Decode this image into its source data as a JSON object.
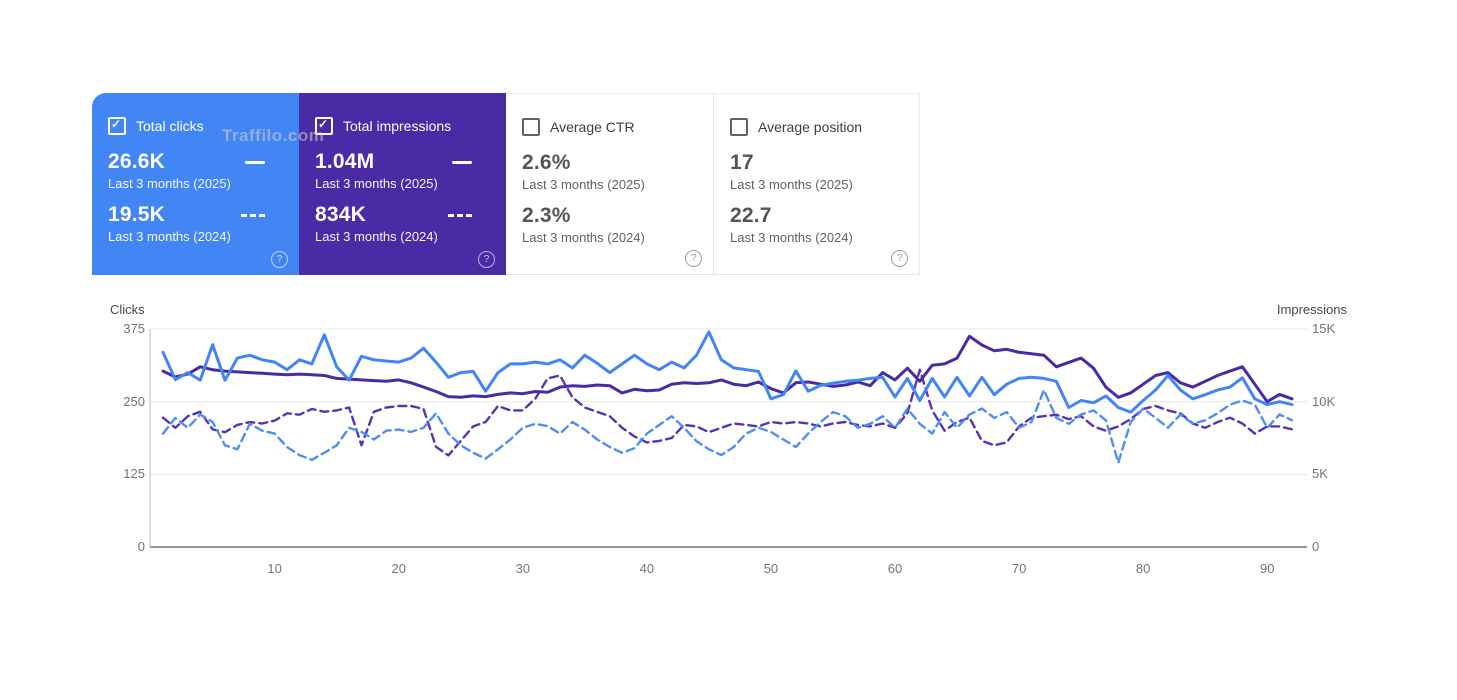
{
  "watermark": "Traffilo.com",
  "cards": [
    {
      "label": "Total clicks",
      "checked": true,
      "bg": "#4285f4",
      "value_2025": "26.6K",
      "period_2025": "Last 3 months (2025)",
      "value_2024": "19.5K",
      "period_2024": "Last 3 months (2024)",
      "help": "?"
    },
    {
      "label": "Total impressions",
      "checked": true,
      "bg": "#4b2aa5",
      "value_2025": "1.04M",
      "period_2025": "Last 3 months (2025)",
      "value_2024": "834K",
      "period_2024": "Last 3 months (2024)",
      "help": "?"
    },
    {
      "label": "Average CTR",
      "checked": false,
      "bg": "#ffffff",
      "value_2025": "2.6%",
      "period_2025": "Last 3 months (2025)",
      "value_2024": "2.3%",
      "period_2024": "Last 3 months (2024)",
      "help": "?"
    },
    {
      "label": "Average position",
      "checked": false,
      "bg": "#ffffff",
      "value_2025": "17",
      "period_2025": "Last 3 months (2025)",
      "value_2024": "22.7",
      "period_2024": "Last 3 months (2024)",
      "help": "?"
    }
  ],
  "chart_data": {
    "type": "line",
    "title": "",
    "grid": true,
    "legend_position": "none",
    "x_axis": {
      "range": [
        1,
        92
      ],
      "tick_values": [
        10,
        20,
        30,
        40,
        50,
        60,
        70,
        80,
        90
      ]
    },
    "y_left": {
      "label": "Clicks",
      "max": 375,
      "ticks": [
        375,
        250,
        125,
        0
      ]
    },
    "y_right": {
      "label": "Impressions",
      "max": 15000,
      "tick_values": [
        15000,
        10000,
        5000,
        0
      ],
      "tick_labels": [
        "15K",
        "10K",
        "5K",
        "0"
      ]
    },
    "series": [
      {
        "name": "Impressions — Last 3 months (2024)",
        "axis": "right",
        "style": "dashed",
        "color": "#5833b8",
        "values": [
          8900,
          8200,
          9000,
          9300,
          8100,
          7900,
          8400,
          8600,
          8500,
          8700,
          9200,
          9100,
          9500,
          9300,
          9400,
          9600,
          7000,
          9300,
          9600,
          9700,
          9700,
          9500,
          6900,
          6300,
          7300,
          8300,
          8600,
          9700,
          9400,
          9400,
          10200,
          11600,
          11800,
          10300,
          9600,
          9300,
          9000,
          8200,
          7600,
          7200,
          7300,
          7500,
          8400,
          8300,
          7900,
          8200,
          8500,
          8400,
          8300,
          8600,
          8500,
          8600,
          8500,
          8300,
          8500,
          8600,
          8400,
          8300,
          8500,
          8200,
          9200,
          12200,
          9400,
          8000,
          8600,
          8900,
          7300,
          7000,
          7200,
          8300,
          8900,
          9000,
          9100,
          8800,
          9000,
          8300,
          8000,
          8300,
          8800,
          9500,
          9700,
          9400,
          9200,
          8500,
          8200,
          8600,
          8900,
          8500,
          7800,
          8300,
          8300,
          8100
        ]
      },
      {
        "name": "Clicks — Last 3 months (2024)",
        "axis": "left",
        "style": "dashed",
        "color": "#4f8ef5",
        "values": [
          195,
          222,
          205,
          228,
          215,
          175,
          168,
          212,
          200,
          195,
          172,
          158,
          150,
          162,
          175,
          205,
          198,
          185,
          200,
          202,
          198,
          205,
          230,
          195,
          175,
          162,
          152,
          168,
          185,
          205,
          212,
          208,
          195,
          215,
          202,
          185,
          172,
          162,
          170,
          195,
          210,
          225,
          205,
          182,
          168,
          158,
          172,
          195,
          205,
          198,
          185,
          172,
          195,
          215,
          232,
          225,
          205,
          212,
          225,
          205,
          238,
          212,
          195,
          232,
          205,
          228,
          238,
          222,
          232,
          205,
          215,
          270,
          222,
          212,
          228,
          235,
          218,
          145,
          215,
          238,
          222,
          205,
          228,
          212,
          218,
          230,
          245,
          252,
          245,
          205,
          228,
          218
        ]
      },
      {
        "name": "Impressions — Last 3 months (2025)",
        "axis": "right",
        "style": "solid",
        "color": "#4b2aa5",
        "values": [
          12100,
          11700,
          11900,
          12400,
          12200,
          12100,
          12050,
          12000,
          11950,
          11900,
          11850,
          11900,
          11850,
          11800,
          11600,
          11550,
          11500,
          11450,
          11400,
          11500,
          11300,
          11000,
          10700,
          10350,
          10300,
          10400,
          10350,
          10500,
          10600,
          10550,
          10700,
          10650,
          11000,
          11100,
          11050,
          11150,
          11100,
          10600,
          10850,
          10750,
          10800,
          11200,
          11300,
          11250,
          11300,
          11500,
          11200,
          11100,
          11350,
          10900,
          10600,
          11300,
          11350,
          11200,
          11050,
          11150,
          11350,
          11100,
          12000,
          11500,
          12300,
          11400,
          12500,
          12600,
          13000,
          14500,
          13900,
          13500,
          13600,
          13400,
          13300,
          13200,
          12400,
          12700,
          13000,
          12300,
          11000,
          10300,
          10600,
          11200,
          11800,
          12000,
          11300,
          11000,
          11400,
          11800,
          12100,
          12400,
          11200,
          10000,
          10500,
          10200
        ]
      },
      {
        "name": "Clicks — Last 3 months (2025)",
        "axis": "left",
        "style": "solid",
        "color": "#4285f4",
        "values": [
          335,
          288,
          300,
          287,
          348,
          287,
          325,
          330,
          322,
          318,
          305,
          322,
          315,
          365,
          310,
          287,
          328,
          322,
          320,
          318,
          325,
          342,
          318,
          292,
          300,
          302,
          268,
          300,
          315,
          315,
          318,
          315,
          322,
          308,
          330,
          316,
          300,
          315,
          330,
          315,
          305,
          318,
          308,
          330,
          370,
          322,
          308,
          305,
          302,
          255,
          262,
          303,
          268,
          278,
          282,
          285,
          287,
          290,
          292,
          258,
          290,
          252,
          290,
          258,
          292,
          260,
          292,
          262,
          280,
          290,
          292,
          290,
          285,
          240,
          252,
          248,
          260,
          240,
          232,
          252,
          270,
          295,
          270,
          255,
          262,
          270,
          275,
          291,
          255,
          245,
          250,
          245
        ]
      }
    ]
  }
}
